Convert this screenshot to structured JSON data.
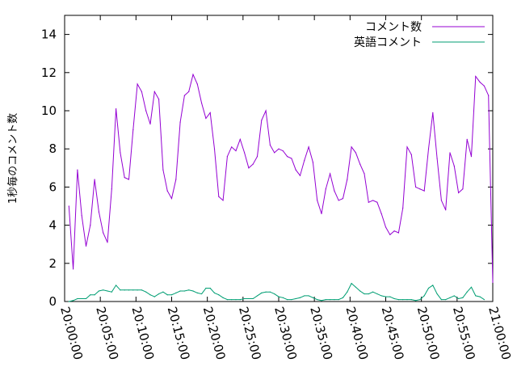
{
  "chart_data": {
    "type": "line",
    "ylabel": "1秒毎のコメント数",
    "xlabel": "",
    "ylim": [
      0,
      15
    ],
    "yticks": [
      "0",
      "2",
      "4",
      "6",
      "8",
      "10",
      "12",
      "14"
    ],
    "xlim": [
      "20:00:00",
      "21:00:00"
    ],
    "xticks": [
      "20:00:00",
      "20:05:00",
      "20:10:00",
      "20:15:00",
      "20:20:00",
      "20:25:00",
      "20:30:00",
      "20:35:00",
      "20:40:00",
      "20:45:00",
      "20:50:00",
      "20:55:00",
      "21:00:00"
    ],
    "legend_position": "top-right",
    "grid": false,
    "series": [
      {
        "name": "コメント数",
        "color": "#9400d3",
        "x": [
          "20:00:36",
          "20:01:12",
          "20:01:48",
          "20:02:24",
          "20:03:00",
          "20:03:36",
          "20:04:12",
          "20:04:48",
          "20:05:24",
          "20:06:00",
          "20:06:36",
          "20:07:12",
          "20:07:48",
          "20:08:24",
          "20:09:00",
          "20:09:36",
          "20:10:12",
          "20:10:48",
          "20:11:24",
          "20:12:00",
          "20:12:36",
          "20:13:12",
          "20:13:48",
          "20:14:24",
          "20:15:00",
          "20:15:36",
          "20:16:12",
          "20:16:48",
          "20:17:24",
          "20:18:00",
          "20:18:36",
          "20:19:12",
          "20:19:48",
          "20:20:24",
          "20:21:00",
          "20:21:36",
          "20:22:12",
          "20:22:48",
          "20:23:24",
          "20:24:00",
          "20:24:36",
          "20:25:12",
          "20:25:48",
          "20:26:24",
          "20:27:00",
          "20:27:36",
          "20:28:12",
          "20:28:48",
          "20:29:24",
          "20:30:00",
          "20:30:36",
          "20:31:12",
          "20:31:48",
          "20:32:24",
          "20:33:00",
          "20:33:36",
          "20:34:12",
          "20:34:48",
          "20:35:24",
          "20:36:00",
          "20:36:36",
          "20:37:12",
          "20:37:48",
          "20:38:24",
          "20:39:00",
          "20:39:36",
          "20:40:12",
          "20:40:48",
          "20:41:24",
          "20:42:00",
          "20:42:36",
          "20:43:12",
          "20:43:48",
          "20:44:24",
          "20:45:00",
          "20:45:36",
          "20:46:12",
          "20:46:48",
          "20:47:24",
          "20:48:00",
          "20:48:36",
          "20:49:12",
          "20:49:48",
          "20:50:24",
          "20:51:00",
          "20:51:36",
          "20:52:12",
          "20:52:48",
          "20:53:24",
          "20:54:00",
          "20:54:36",
          "20:55:12",
          "20:55:48",
          "20:56:24",
          "20:57:00",
          "20:57:36"
        ],
        "values": [
          5.0,
          1.7,
          6.9,
          4.5,
          2.9,
          4.0,
          6.4,
          4.7,
          3.6,
          3.1,
          5.9,
          10.1,
          7.8,
          6.5,
          6.4,
          9.0,
          11.4,
          11.0,
          10.0,
          9.3,
          11.0,
          10.6,
          6.9,
          5.8,
          5.4,
          6.4,
          9.4,
          10.8,
          11.0,
          11.9,
          11.4,
          10.4,
          9.6,
          9.9,
          8.0,
          5.5,
          5.3,
          7.6,
          8.1,
          7.9,
          8.5,
          7.8,
          7.0,
          7.2,
          7.6,
          9.5,
          10.0,
          8.2,
          7.8,
          8.0,
          7.9,
          7.6,
          7.5,
          6.9,
          6.6,
          7.4,
          8.1,
          7.3,
          5.3,
          4.6,
          5.9,
          6.7,
          5.8,
          5.3,
          5.4,
          6.4,
          8.1,
          7.8,
          7.2,
          6.7,
          5.2,
          5.3,
          5.2,
          4.6,
          3.9,
          3.5,
          3.7,
          3.6,
          4.9,
          8.1,
          7.7,
          6.0,
          5.9,
          5.8,
          8.0,
          9.9,
          7.5,
          5.3,
          4.8,
          7.8,
          7.1,
          5.7,
          5.9,
          8.5,
          7.6,
          11.8
        ]
      },
      {
        "name": "英語コメント",
        "color": "#009e73",
        "x": [
          "20:00:36",
          "20:01:12",
          "20:01:48",
          "20:02:24",
          "20:03:00",
          "20:03:36",
          "20:04:12",
          "20:04:48",
          "20:05:24",
          "20:06:00",
          "20:06:36",
          "20:07:12",
          "20:07:48",
          "20:08:24",
          "20:09:00",
          "20:09:36",
          "20:10:12",
          "20:10:48",
          "20:11:24",
          "20:12:00",
          "20:12:36",
          "20:13:12",
          "20:13:48",
          "20:14:24",
          "20:15:00",
          "20:15:36",
          "20:16:12",
          "20:16:48",
          "20:17:24",
          "20:18:00",
          "20:18:36",
          "20:19:12",
          "20:19:48",
          "20:20:24",
          "20:21:00",
          "20:21:36",
          "20:22:12",
          "20:22:48",
          "20:23:24",
          "20:24:00",
          "20:24:36",
          "20:25:12",
          "20:25:48",
          "20:26:24",
          "20:27:00",
          "20:27:36",
          "20:28:12",
          "20:28:48",
          "20:29:24",
          "20:30:00",
          "20:30:36",
          "20:31:12",
          "20:31:48",
          "20:32:24",
          "20:33:00",
          "20:33:36",
          "20:34:12",
          "20:34:48",
          "20:35:24",
          "20:36:00",
          "20:36:36",
          "20:37:12",
          "20:37:48",
          "20:38:24",
          "20:39:00",
          "20:39:36",
          "20:40:12",
          "20:40:48",
          "20:41:24",
          "20:42:00",
          "20:42:36",
          "20:43:12",
          "20:43:48",
          "20:44:24",
          "20:45:00",
          "20:45:36",
          "20:46:12",
          "20:46:48",
          "20:47:24",
          "20:48:00",
          "20:48:36",
          "20:49:12",
          "20:49:48",
          "20:50:24",
          "20:51:00",
          "20:51:36",
          "20:52:12",
          "20:52:48",
          "20:53:24",
          "20:54:00",
          "20:54:36",
          "20:55:12",
          "20:55:48",
          "20:56:24",
          "20:57:00",
          "20:57:36"
        ],
        "values": [
          0.0,
          0.05,
          0.15,
          0.15,
          0.15,
          0.35,
          0.35,
          0.55,
          0.6,
          0.55,
          0.5,
          0.85,
          0.6,
          0.6,
          0.6,
          0.6,
          0.6,
          0.6,
          0.5,
          0.35,
          0.25,
          0.4,
          0.5,
          0.35,
          0.35,
          0.45,
          0.55,
          0.55,
          0.6,
          0.55,
          0.45,
          0.4,
          0.7,
          0.7,
          0.45,
          0.35,
          0.2,
          0.1,
          0.1,
          0.1,
          0.1,
          0.15,
          0.15,
          0.15,
          0.3,
          0.45,
          0.5,
          0.5,
          0.4,
          0.25,
          0.2,
          0.1,
          0.1,
          0.15,
          0.2,
          0.3,
          0.3,
          0.2,
          0.1,
          0.05,
          0.1,
          0.1,
          0.1,
          0.1,
          0.2,
          0.5,
          0.95,
          0.75,
          0.55,
          0.4,
          0.4,
          0.5,
          0.4,
          0.3,
          0.25,
          0.25,
          0.15,
          0.1,
          0.1,
          0.1,
          0.1,
          0.05,
          0.1,
          0.3,
          0.7,
          0.85,
          0.4,
          0.1,
          0.1,
          0.2,
          0.3,
          0.15,
          0.2,
          0.5,
          0.75,
          0.3
        ]
      }
    ],
    "tail": [
      {
        "series": 0,
        "x": [
          "20:58:12",
          "20:58:48",
          "20:59:24",
          "21:00:00"
        ],
        "values": [
          11.5,
          11.3,
          10.8,
          1.0
        ]
      },
      {
        "series": 1,
        "x": [
          "20:58:12",
          "20:58:48"
        ],
        "values": [
          0.25,
          0.1
        ]
      }
    ]
  }
}
